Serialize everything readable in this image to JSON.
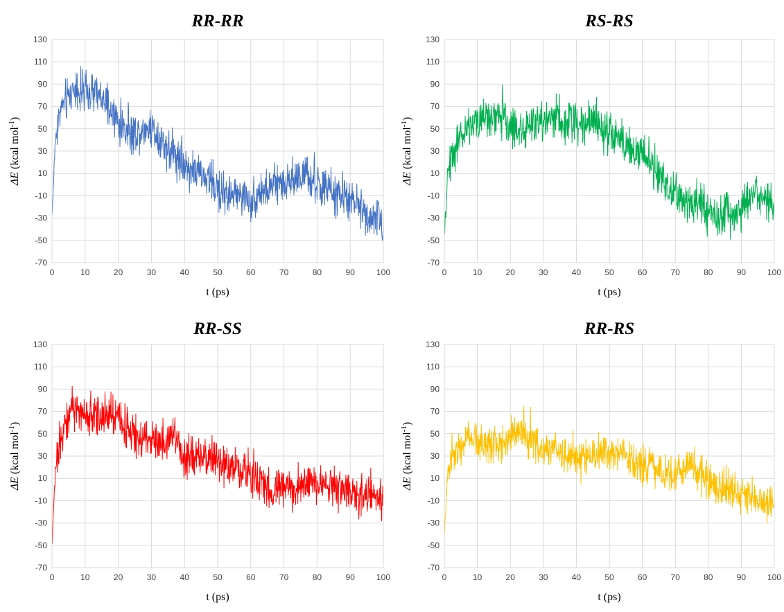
{
  "chart_data": [
    {
      "type": "line",
      "title": "RR-RR",
      "xlabel": "t (ps)",
      "ylabel_symbol": "ΔE",
      "ylabel_unit_pre": "(kcal mol",
      "ylabel_sup": "-1",
      "ylabel_unit_post": ")",
      "xlim": [
        0,
        100
      ],
      "ylim": [
        -70,
        130
      ],
      "xticks": [
        "0",
        "10",
        "20",
        "30",
        "40",
        "50",
        "60",
        "70",
        "80",
        "90",
        "100"
      ],
      "yticks": [
        "-70",
        "-50",
        "-30",
        "-10",
        "10",
        "30",
        "50",
        "70",
        "90",
        "110",
        "130"
      ],
      "grid": true,
      "color": "#4472c4",
      "x": [
        0,
        1,
        2,
        3,
        5,
        7,
        10,
        13,
        15,
        18,
        20,
        22,
        25,
        28,
        30,
        33,
        35,
        38,
        40,
        43,
        45,
        48,
        50,
        53,
        55,
        58,
        60,
        62,
        65,
        68,
        70,
        72,
        75,
        78,
        80,
        83,
        85,
        88,
        90,
        93,
        95,
        97,
        100
      ],
      "y": [
        -30,
        40,
        60,
        70,
        78,
        88,
        80,
        82,
        76,
        64,
        56,
        50,
        46,
        50,
        52,
        40,
        32,
        25,
        18,
        12,
        8,
        3,
        -5,
        -8,
        -10,
        -10,
        -15,
        -8,
        -5,
        0,
        3,
        5,
        8,
        4,
        0,
        -5,
        -8,
        -10,
        -15,
        -20,
        -25,
        -30,
        -35
      ],
      "noise": 14
    },
    {
      "type": "line",
      "title": "RS-RS",
      "xlabel": "t (ps)",
      "ylabel_symbol": "ΔE",
      "ylabel_unit_pre": "(kcal mol",
      "ylabel_sup": "-1",
      "ylabel_unit_post": ")",
      "xlim": [
        0,
        100
      ],
      "ylim": [
        -70,
        130
      ],
      "xticks": [
        "0",
        "10",
        "20",
        "30",
        "40",
        "50",
        "60",
        "70",
        "80",
        "90",
        "100"
      ],
      "yticks": [
        "-70",
        "-50",
        "-30",
        "-10",
        "10",
        "30",
        "50",
        "70",
        "90",
        "110",
        "130"
      ],
      "grid": true,
      "color": "#00b050",
      "x": [
        0,
        1,
        2,
        4,
        7,
        10,
        13,
        15,
        18,
        20,
        22,
        25,
        28,
        30,
        33,
        35,
        38,
        40,
        43,
        45,
        48,
        50,
        53,
        55,
        58,
        60,
        63,
        65,
        68,
        70,
        73,
        75,
        78,
        80,
        83,
        85,
        88,
        90,
        93,
        95,
        98,
        100
      ],
      "y": [
        -50,
        10,
        25,
        38,
        50,
        58,
        60,
        62,
        58,
        55,
        48,
        50,
        55,
        58,
        62,
        60,
        55,
        58,
        55,
        58,
        52,
        48,
        40,
        35,
        30,
        28,
        20,
        8,
        -5,
        -10,
        -15,
        -15,
        -18,
        -25,
        -28,
        -25,
        -30,
        -20,
        -10,
        -12,
        -15,
        -18
      ],
      "noise": 14
    },
    {
      "type": "line",
      "title": "RR-SS",
      "xlabel": "t (ps)",
      "ylabel_symbol": "ΔE",
      "ylabel_unit_pre": "(kcal mol",
      "ylabel_sup": "-1",
      "ylabel_unit_post": ")",
      "xlim": [
        0,
        100
      ],
      "ylim": [
        -70,
        130
      ],
      "xticks": [
        "0",
        "10",
        "20",
        "30",
        "40",
        "50",
        "60",
        "70",
        "80",
        "90",
        "100"
      ],
      "yticks": [
        "-70",
        "-50",
        "-30",
        "-10",
        "10",
        "30",
        "50",
        "70",
        "90",
        "110",
        "130"
      ],
      "grid": true,
      "color": "#ff0000",
      "x": [
        0,
        1,
        2,
        4,
        6,
        8,
        10,
        13,
        15,
        18,
        20,
        22,
        25,
        28,
        30,
        33,
        35,
        37,
        40,
        43,
        45,
        48,
        50,
        53,
        55,
        58,
        60,
        62,
        65,
        68,
        70,
        73,
        75,
        78,
        80,
        83,
        85,
        88,
        90,
        93,
        95,
        98,
        100
      ],
      "y": [
        -50,
        15,
        40,
        60,
        70,
        72,
        68,
        66,
        65,
        68,
        70,
        55,
        50,
        48,
        45,
        42,
        45,
        50,
        30,
        28,
        30,
        28,
        25,
        22,
        20,
        18,
        15,
        10,
        0,
        2,
        2,
        0,
        3,
        5,
        5,
        5,
        3,
        0,
        -2,
        -5,
        -5,
        -8,
        -8
      ],
      "noise": 14
    },
    {
      "type": "line",
      "title": "RR-RS",
      "xlabel": "t (ps)",
      "ylabel_symbol": "ΔE",
      "ylabel_unit_pre": "(kcal mol",
      "ylabel_sup": "-1",
      "ylabel_unit_post": ")",
      "xlim": [
        0,
        100
      ],
      "ylim": [
        -70,
        130
      ],
      "xticks": [
        "0",
        "10",
        "20",
        "30",
        "40",
        "50",
        "60",
        "70",
        "80",
        "90",
        "100"
      ],
      "yticks": [
        "-70",
        "-50",
        "-30",
        "-10",
        "10",
        "30",
        "50",
        "70",
        "90",
        "110",
        "130"
      ],
      "grid": true,
      "color": "#ffc000",
      "x": [
        0,
        1,
        2,
        4,
        7,
        10,
        13,
        15,
        18,
        20,
        22,
        25,
        28,
        30,
        33,
        35,
        38,
        40,
        43,
        45,
        48,
        50,
        53,
        55,
        58,
        60,
        63,
        65,
        68,
        70,
        73,
        75,
        78,
        80,
        83,
        85,
        88,
        90,
        93,
        95,
        98,
        100
      ],
      "y": [
        -40,
        15,
        30,
        40,
        45,
        44,
        42,
        40,
        42,
        48,
        55,
        45,
        40,
        38,
        35,
        32,
        30,
        28,
        28,
        30,
        30,
        32,
        30,
        28,
        22,
        20,
        18,
        15,
        15,
        18,
        20,
        22,
        12,
        8,
        2,
        0,
        -2,
        -5,
        -8,
        -10,
        -12,
        -12
      ],
      "noise": 13
    }
  ]
}
